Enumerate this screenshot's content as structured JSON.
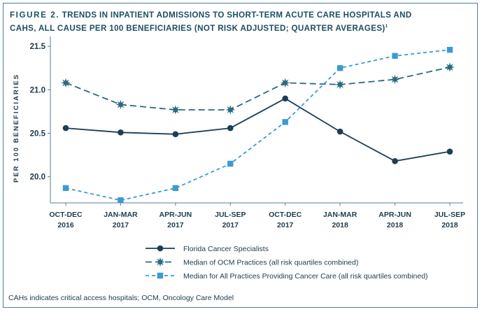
{
  "figure": {
    "title_lead": "FIGURE 2.",
    "title_line1": "TRENDS IN INPATIENT ADMISSIONS TO SHORT-TERM ACUTE CARE HOSPITALS AND",
    "title_line2": "CAHS, ALL CAUSE PER 100 BENEFICIARIES (NOT RISK ADJUSTED; QUARTER AVERAGES)",
    "title_superscript": "1",
    "footnote": "CAHs indicates critical access hospitals; OCM, Oncology Care Model"
  },
  "chart_data": {
    "type": "line",
    "ylabel": "PER 100 BENEFICIARIES",
    "xlabel": "",
    "ylim": [
      19.7,
      21.55
    ],
    "yticks": [
      "20.0",
      "20.5",
      "21.0",
      "21.5"
    ],
    "ytick_values": [
      20.0,
      20.5,
      21.0,
      21.5
    ],
    "grid": false,
    "legend_position": "bottom-center",
    "categories": [
      [
        "OCT-DEC",
        "2016"
      ],
      [
        "JAN-MAR",
        "2017"
      ],
      [
        "APR-JUN",
        "2017"
      ],
      [
        "JUL-SEP",
        "2017"
      ],
      [
        "OCT-DEC",
        "2017"
      ],
      [
        "JAN-MAR",
        "2018"
      ],
      [
        "APR-JUN",
        "2018"
      ],
      [
        "JUL-SEP",
        "2018"
      ]
    ],
    "series": [
      {
        "name": "Florida Cancer Specialists",
        "values": [
          20.56,
          20.51,
          20.49,
          20.56,
          20.9,
          20.52,
          20.18,
          20.29
        ],
        "color": "#1a3f56",
        "line_style": "solid",
        "marker": "circle"
      },
      {
        "name": "Median of OCM Practices (all risk quartiles combined)",
        "values": [
          21.08,
          20.83,
          20.77,
          20.77,
          21.08,
          21.06,
          21.12,
          21.26
        ],
        "color": "#2a6a7e",
        "line_style": "dashed",
        "marker": "star"
      },
      {
        "name": "Median for All Practices Providing Cancer Care (all risk quartiles combined)",
        "values": [
          19.87,
          19.73,
          19.87,
          20.15,
          20.63,
          21.25,
          21.39,
          21.46
        ],
        "color": "#3b9ad1",
        "line_style": "dashed",
        "marker": "square"
      }
    ]
  }
}
